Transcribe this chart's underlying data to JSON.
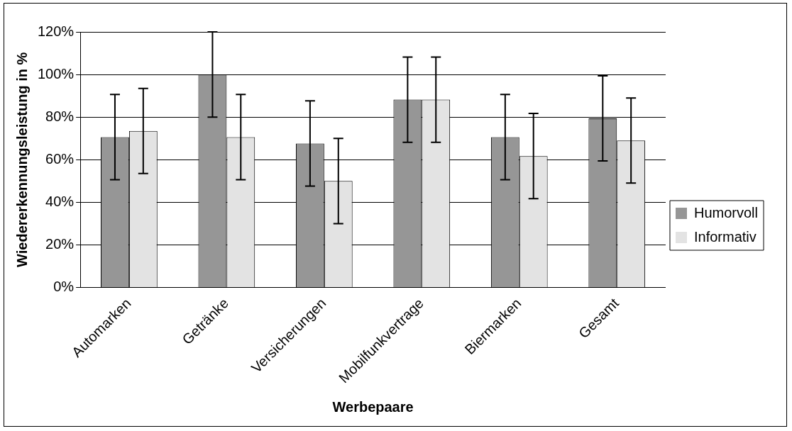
{
  "chart_data": {
    "type": "bar",
    "xlabel": "Werbepaare",
    "ylabel": "Wiedererkennungsleistung in %",
    "categories": [
      "Automarken",
      "Getränke",
      "Versicherungen",
      "Mobilfunkvertrage",
      "Biermarken",
      "Gesamt"
    ],
    "series": [
      {
        "name": "Humorvoll",
        "color": "#969696",
        "values": [
          70.6,
          100,
          67.6,
          88.2,
          70.6,
          79.4
        ],
        "errors": [
          20,
          20,
          20,
          20,
          20,
          20
        ]
      },
      {
        "name": "Informativ",
        "color": "#e3e3e3",
        "values": [
          73.5,
          70.6,
          50,
          88.2,
          61.7,
          69
        ],
        "errors": [
          20,
          20,
          20,
          20,
          20,
          20
        ]
      }
    ],
    "ylim": [
      0,
      120
    ],
    "yticks": [
      {
        "value": 0,
        "label": "0%"
      },
      {
        "value": 20,
        "label": "20%"
      },
      {
        "value": 40,
        "label": "40%"
      },
      {
        "value": 60,
        "label": "60%"
      },
      {
        "value": 80,
        "label": "80%"
      },
      {
        "value": 100,
        "label": "100%"
      },
      {
        "value": 120,
        "label": "120%"
      }
    ],
    "grid": "y",
    "legend": "right"
  }
}
